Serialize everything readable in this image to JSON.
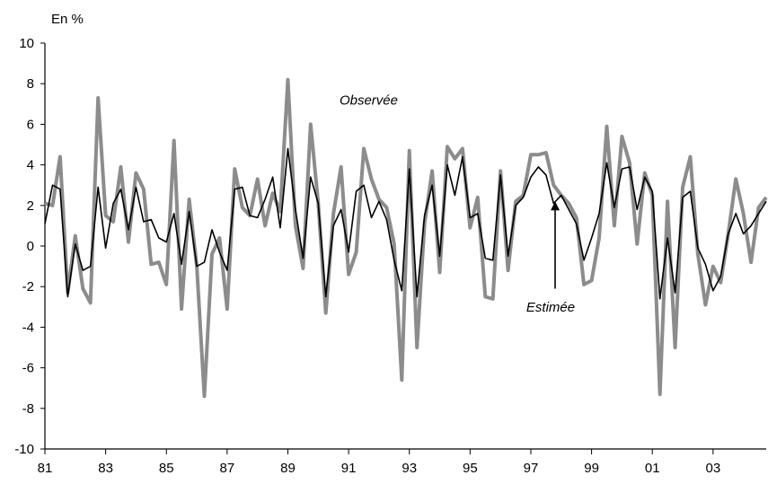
{
  "chart_data": {
    "type": "line",
    "unit_label": "En %",
    "title": "",
    "xlabel": "",
    "ylabel": "",
    "ylim": [
      -10,
      10
    ],
    "yticks": [
      -10,
      -8,
      -6,
      -4,
      -2,
      0,
      2,
      4,
      6,
      8,
      10
    ],
    "xlim": [
      1981.0,
      2004.75
    ],
    "xticks": [
      "81",
      "83",
      "85",
      "87",
      "89",
      "91",
      "93",
      "95",
      "97",
      "99",
      "01",
      "03"
    ],
    "xtick_years": [
      1981,
      1983,
      1985,
      1987,
      1989,
      1991,
      1993,
      1995,
      1997,
      1999,
      2001,
      2003
    ],
    "grid": false,
    "x": [
      1981.0,
      1981.25,
      1981.5,
      1981.75,
      1982.0,
      1982.25,
      1982.5,
      1982.75,
      1983.0,
      1983.25,
      1983.5,
      1983.75,
      1984.0,
      1984.25,
      1984.5,
      1984.75,
      1985.0,
      1985.25,
      1985.5,
      1985.75,
      1986.0,
      1986.25,
      1986.5,
      1986.75,
      1987.0,
      1987.25,
      1987.5,
      1987.75,
      1988.0,
      1988.25,
      1988.5,
      1988.75,
      1989.0,
      1989.25,
      1989.5,
      1989.75,
      1990.0,
      1990.25,
      1990.5,
      1990.75,
      1991.0,
      1991.25,
      1991.5,
      1991.75,
      1992.0,
      1992.25,
      1992.5,
      1992.75,
      1993.0,
      1993.25,
      1993.5,
      1993.75,
      1994.0,
      1994.25,
      1994.5,
      1994.75,
      1995.0,
      1995.25,
      1995.5,
      1995.75,
      1996.0,
      1996.25,
      1996.5,
      1996.75,
      1997.0,
      1997.25,
      1997.5,
      1997.75,
      1998.0,
      1998.25,
      1998.5,
      1998.75,
      1999.0,
      1999.25,
      1999.5,
      1999.75,
      2000.0,
      2000.25,
      2000.5,
      2000.75,
      2001.0,
      2001.25,
      2001.5,
      2001.75,
      2002.0,
      2002.25,
      2002.5,
      2002.75,
      2003.0,
      2003.25,
      2003.5,
      2003.75,
      2004.0,
      2004.25,
      2004.5,
      2004.75
    ],
    "series": [
      {
        "name": "Observée",
        "color": "#8c8c8c",
        "values": [
          2.1,
          2.0,
          4.4,
          -2.3,
          0.5,
          -2.1,
          -2.8,
          7.3,
          1.5,
          1.2,
          3.9,
          0.2,
          3.6,
          2.8,
          -0.9,
          -0.8,
          -1.9,
          5.2,
          -3.1,
          2.3,
          -1.0,
          -7.4,
          -0.4,
          0.4,
          -3.1,
          3.8,
          1.9,
          1.5,
          3.3,
          1.0,
          2.6,
          1.7,
          8.2,
          1.0,
          -1.1,
          6.0,
          2.1,
          -3.3,
          1.6,
          3.9,
          -1.4,
          -0.3,
          4.8,
          3.3,
          2.3,
          1.9,
          0.1,
          -6.6,
          4.7,
          -5.0,
          1.1,
          3.7,
          -1.3,
          4.9,
          4.3,
          4.8,
          0.9,
          2.4,
          -2.5,
          -2.6,
          3.7,
          -1.2,
          2.2,
          2.5,
          4.5,
          4.5,
          4.6,
          3.0,
          2.5,
          2.1,
          1.4,
          -1.9,
          -1.7,
          0.4,
          5.9,
          1.0,
          5.4,
          4.1,
          0.1,
          3.6,
          2.5,
          -7.3,
          2.2,
          -5.0,
          2.9,
          4.4,
          -0.4,
          -2.9,
          -1.0,
          -1.8,
          0.6,
          3.3,
          1.6,
          -0.8,
          1.9,
          2.4
        ]
      },
      {
        "name": "Estimée",
        "color": "#000000",
        "values": [
          1.1,
          3.0,
          2.8,
          -2.5,
          0.1,
          -1.2,
          -1.0,
          2.9,
          -0.1,
          2.1,
          2.8,
          0.8,
          2.9,
          1.2,
          1.3,
          0.4,
          0.2,
          1.6,
          -0.9,
          1.7,
          -1.0,
          -0.8,
          0.8,
          -0.3,
          -1.2,
          2.8,
          2.9,
          1.5,
          1.4,
          2.3,
          3.4,
          0.9,
          4.8,
          1.8,
          -0.6,
          3.4,
          2.1,
          -2.5,
          1.0,
          1.8,
          -0.3,
          2.7,
          3.0,
          1.4,
          2.2,
          1.3,
          -0.7,
          -2.2,
          3.8,
          -2.5,
          1.5,
          3.0,
          -0.5,
          4.0,
          2.5,
          4.4,
          1.4,
          1.6,
          -0.6,
          -0.7,
          3.5,
          -0.5,
          2.0,
          2.4,
          3.4,
          3.9,
          3.5,
          2.1,
          2.5,
          1.8,
          1.1,
          -0.7,
          0.4,
          1.6,
          4.1,
          1.9,
          3.8,
          3.9,
          1.8,
          3.4,
          2.7,
          -2.6,
          0.4,
          -2.3,
          2.4,
          2.7,
          -0.1,
          -0.9,
          -2.2,
          -1.5,
          0.6,
          1.6,
          0.6,
          1.0,
          1.6,
          2.2
        ]
      }
    ],
    "annotations": [
      {
        "text": "Observée",
        "x": 1990.7,
        "y": 7.2
      },
      {
        "text": "Estimée",
        "x": 1996.85,
        "y": -3.0,
        "arrow_to": [
          1997.8,
          2.2
        ],
        "arrow_from": [
          1997.8,
          -2.1
        ]
      }
    ]
  }
}
